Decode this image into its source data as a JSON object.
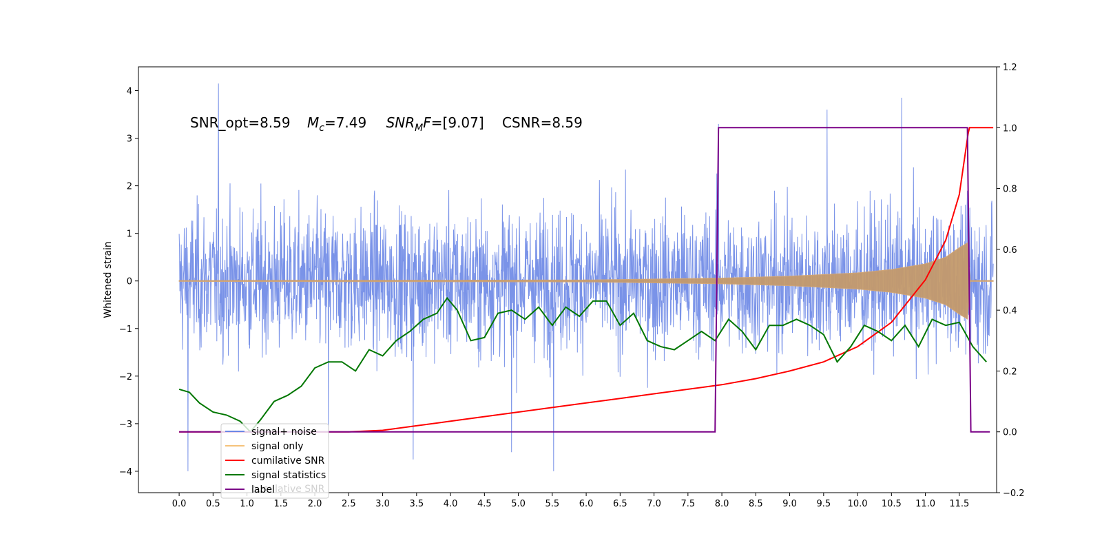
{
  "chart_data": {
    "type": "line",
    "title": "",
    "annotation": {
      "snr_opt": "SNR_opt=8.59",
      "mc_symbol": "M",
      "mc_sub": "c",
      "mc_value": "=7.49",
      "snrmf_symbol": "SNR",
      "snrmf_sub": "M",
      "snrmf_mid": "F",
      "snrmf_value": "=[9.07]",
      "csnr": "CSNR=8.59"
    },
    "xlabel": "",
    "ylabel": "Whitened strain",
    "ylabel_right": "",
    "xlim": [
      -0.6,
      12.05
    ],
    "ylim": [
      -4.45,
      4.5
    ],
    "ylim_right": [
      -0.2,
      1.2
    ],
    "x_ticks": [
      0.0,
      0.5,
      1.0,
      1.5,
      2.0,
      2.5,
      3.0,
      3.5,
      4.0,
      4.5,
      5.0,
      5.5,
      6.0,
      6.5,
      7.0,
      7.5,
      8.0,
      8.5,
      9.0,
      9.5,
      10.0,
      10.5,
      11.0,
      11.5
    ],
    "x_tick_labels": [
      "0.0",
      "0.5",
      "1.0",
      "1.5",
      "2.0",
      "2.5",
      "3.0",
      "3.5",
      "4.0",
      "4.5",
      "5.0",
      "5.5",
      "6.0",
      "6.5",
      "7.0",
      "7.5",
      "8.0",
      "8.5",
      "9.0",
      "9.5",
      "10.0",
      "10.5",
      "11.0",
      "11.5"
    ],
    "y_ticks": [
      -4,
      -3,
      -2,
      -1,
      0,
      1,
      2,
      3,
      4
    ],
    "y_tick_labels": [
      "−4",
      "−3",
      "−2",
      "−1",
      "0",
      "1",
      "2",
      "3",
      "4"
    ],
    "y_right_ticks": [
      -0.2,
      0.0,
      0.2,
      0.4,
      0.6,
      0.8,
      1.0,
      1.2
    ],
    "y_right_tick_labels": [
      "−0.2",
      "0.0",
      "0.2",
      "0.4",
      "0.6",
      "0.8",
      "1.0",
      "1.2"
    ],
    "grid": false,
    "legend_position": "lower-left",
    "legend": [
      {
        "label": "signal+ noise",
        "color": "#6b87e6"
      },
      {
        "label": "signal only",
        "color": "#f5c27a"
      },
      {
        "label": "cumilative SNR",
        "color": "#ff0000"
      },
      {
        "label": "signal statistics",
        "color": "#007700"
      },
      {
        "label": "label",
        "color": "#7a0087"
      }
    ],
    "legend_hidden_text": "cumilative SNR",
    "series": [
      {
        "name": "signal+ noise",
        "axis": "left",
        "color": "#6b87e6",
        "x_range": [
          0.0,
          12.0
        ],
        "approx_envelope": [
          -2.5,
          2.5
        ],
        "extremes": [
          {
            "x": 0.58,
            "y": 4.15
          },
          {
            "x": 0.13,
            "y": -4.0
          },
          {
            "x": 5.52,
            "y": -4.0
          },
          {
            "x": 10.65,
            "y": 3.85
          },
          {
            "x": 7.95,
            "y": 3.3
          },
          {
            "x": 2.2,
            "y": -3.3
          },
          {
            "x": 4.9,
            "y": -3.6
          },
          {
            "x": 9.55,
            "y": 3.6
          },
          {
            "x": 3.45,
            "y": -3.75
          }
        ]
      },
      {
        "name": "signal only",
        "axis": "left",
        "color": "#f5c27a",
        "x_range": [
          0.0,
          12.0
        ],
        "amplitude_points": [
          [
            0.0,
            0.01
          ],
          [
            6.0,
            0.02
          ],
          [
            8.0,
            0.06
          ],
          [
            9.0,
            0.1
          ],
          [
            10.0,
            0.17
          ],
          [
            10.5,
            0.24
          ],
          [
            11.0,
            0.36
          ],
          [
            11.3,
            0.5
          ],
          [
            11.5,
            0.7
          ],
          [
            11.62,
            0.8
          ],
          [
            11.66,
            0.01
          ],
          [
            12.0,
            0.01
          ]
        ]
      },
      {
        "name": "cumilative SNR",
        "axis": "right",
        "color": "#ff0000",
        "x": [
          0.0,
          0.5,
          1.0,
          1.5,
          2.0,
          2.5,
          3.0,
          3.5,
          4.0,
          4.5,
          5.0,
          5.5,
          6.0,
          6.5,
          7.0,
          7.5,
          8.0,
          8.5,
          9.0,
          9.5,
          10.0,
          10.5,
          11.0,
          11.3,
          11.5,
          11.63,
          11.65,
          12.0
        ],
        "values": [
          0.0,
          0.0,
          0.0,
          0.0,
          0.0,
          0.0,
          0.005,
          0.02,
          0.035,
          0.05,
          0.065,
          0.08,
          0.095,
          0.11,
          0.125,
          0.14,
          0.155,
          0.175,
          0.2,
          0.23,
          0.28,
          0.36,
          0.5,
          0.63,
          0.78,
          0.98,
          1.0,
          1.0
        ]
      },
      {
        "name": "signal statistics",
        "axis": "right",
        "color": "#007700",
        "x": [
          0.0,
          0.15,
          0.3,
          0.5,
          0.7,
          0.9,
          1.05,
          1.2,
          1.4,
          1.6,
          1.8,
          2.0,
          2.2,
          2.4,
          2.6,
          2.8,
          3.0,
          3.2,
          3.4,
          3.6,
          3.8,
          3.95,
          4.1,
          4.3,
          4.5,
          4.7,
          4.9,
          5.1,
          5.3,
          5.5,
          5.7,
          5.9,
          6.1,
          6.3,
          6.5,
          6.7,
          6.9,
          7.1,
          7.3,
          7.5,
          7.7,
          7.9,
          8.1,
          8.3,
          8.5,
          8.7,
          8.9,
          9.1,
          9.3,
          9.5,
          9.7,
          9.9,
          10.1,
          10.3,
          10.5,
          10.7,
          10.9,
          11.1,
          11.3,
          11.5,
          11.7,
          11.9
        ],
        "values": [
          0.14,
          0.13,
          0.095,
          0.065,
          0.055,
          0.035,
          0.0,
          0.04,
          0.1,
          0.12,
          0.15,
          0.21,
          0.23,
          0.23,
          0.2,
          0.27,
          0.25,
          0.3,
          0.33,
          0.37,
          0.39,
          0.44,
          0.4,
          0.3,
          0.31,
          0.39,
          0.4,
          0.37,
          0.41,
          0.35,
          0.41,
          0.38,
          0.43,
          0.43,
          0.35,
          0.39,
          0.3,
          0.28,
          0.27,
          0.3,
          0.33,
          0.3,
          0.37,
          0.33,
          0.27,
          0.35,
          0.35,
          0.37,
          0.35,
          0.32,
          0.23,
          0.28,
          0.35,
          0.33,
          0.3,
          0.35,
          0.28,
          0.37,
          0.35,
          0.36,
          0.28,
          0.23
        ]
      },
      {
        "name": "label",
        "axis": "right",
        "color": "#7a0087",
        "x": [
          0.0,
          7.9,
          7.95,
          11.62,
          11.67,
          11.95
        ],
        "values": [
          0.0,
          0.0,
          1.0,
          1.0,
          0.0,
          0.0
        ]
      }
    ]
  }
}
